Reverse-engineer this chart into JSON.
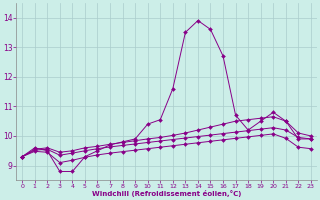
{
  "xlabel": "Windchill (Refroidissement éolien,°C)",
  "xlim": [
    -0.5,
    23.5
  ],
  "ylim": [
    8.5,
    14.5
  ],
  "yticks": [
    9,
    10,
    11,
    12,
    13,
    14
  ],
  "xticks": [
    0,
    1,
    2,
    3,
    4,
    5,
    6,
    7,
    8,
    9,
    10,
    11,
    12,
    13,
    14,
    15,
    16,
    17,
    18,
    19,
    20,
    21,
    22,
    23
  ],
  "bg_color": "#cceee8",
  "line_color": "#880088",
  "grid_color": "#aacccc",
  "lines": [
    {
      "x": [
        0,
        1,
        2,
        3,
        4,
        5,
        6,
        7,
        8,
        9,
        10,
        11,
        12,
        13,
        14,
        15,
        16,
        17,
        18,
        19,
        20,
        21,
        22,
        23
      ],
      "y": [
        9.3,
        9.6,
        9.5,
        8.8,
        8.8,
        9.3,
        9.5,
        9.7,
        9.8,
        9.9,
        10.4,
        10.55,
        11.6,
        13.5,
        13.9,
        13.6,
        12.7,
        10.7,
        10.2,
        10.5,
        10.8,
        10.5,
        9.9,
        9.9
      ]
    },
    {
      "x": [
        0,
        1,
        2,
        3,
        4,
        5,
        6,
        7,
        8,
        9,
        10,
        11,
        12,
        13,
        14,
        15,
        16,
        17,
        18,
        19,
        20,
        21,
        22,
        23
      ],
      "y": [
        9.3,
        9.55,
        9.6,
        9.45,
        9.5,
        9.6,
        9.65,
        9.72,
        9.78,
        9.84,
        9.9,
        9.95,
        10.02,
        10.1,
        10.2,
        10.3,
        10.4,
        10.5,
        10.55,
        10.6,
        10.65,
        10.5,
        10.1,
        10.0
      ]
    },
    {
      "x": [
        0,
        1,
        2,
        3,
        4,
        5,
        6,
        7,
        8,
        9,
        10,
        11,
        12,
        13,
        14,
        15,
        16,
        17,
        18,
        19,
        20,
        21,
        22,
        23
      ],
      "y": [
        9.3,
        9.52,
        9.55,
        9.35,
        9.42,
        9.5,
        9.57,
        9.63,
        9.68,
        9.73,
        9.78,
        9.83,
        9.88,
        9.93,
        9.98,
        10.03,
        10.08,
        10.13,
        10.18,
        10.23,
        10.28,
        10.2,
        9.95,
        9.9
      ]
    },
    {
      "x": [
        0,
        1,
        2,
        3,
        4,
        5,
        6,
        7,
        8,
        9,
        10,
        11,
        12,
        13,
        14,
        15,
        16,
        17,
        18,
        19,
        20,
        21,
        22,
        23
      ],
      "y": [
        9.3,
        9.48,
        9.45,
        9.1,
        9.18,
        9.28,
        9.36,
        9.42,
        9.47,
        9.52,
        9.57,
        9.62,
        9.67,
        9.72,
        9.77,
        9.82,
        9.87,
        9.92,
        9.97,
        10.02,
        10.07,
        9.92,
        9.62,
        9.57
      ]
    }
  ]
}
